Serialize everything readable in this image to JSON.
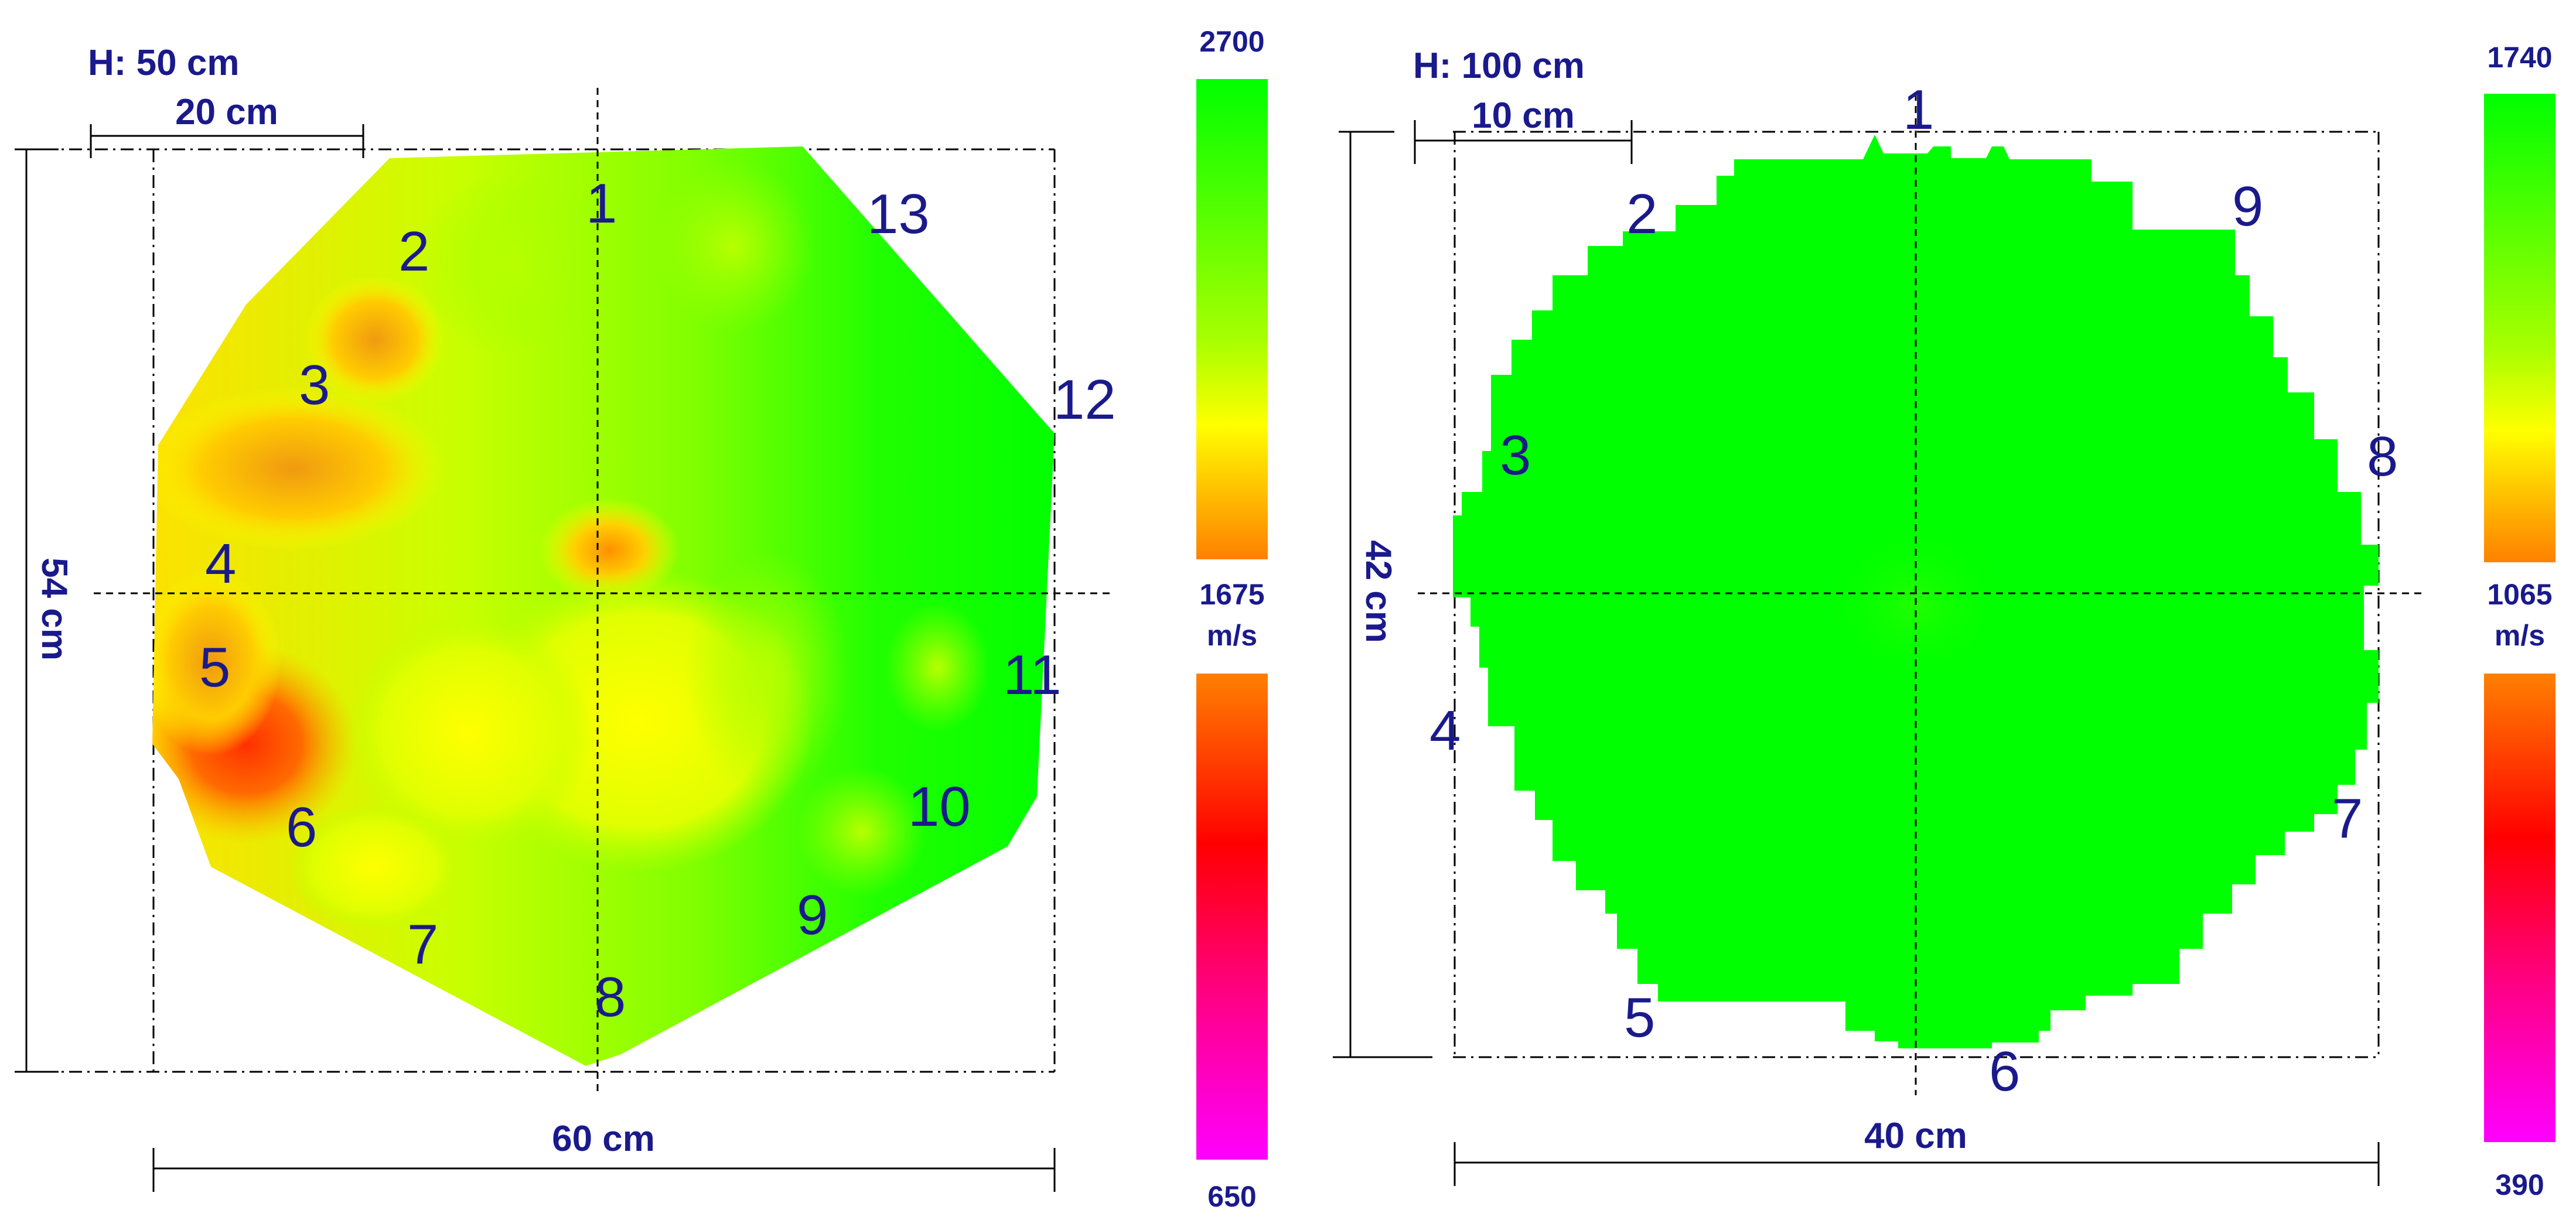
{
  "panels": [
    {
      "height_label": "H: 50 cm",
      "scale_bar_label": "20 cm",
      "width_label": "60 cm",
      "depth_label": "54 cm",
      "sensors": [
        "1",
        "2",
        "3",
        "4",
        "5",
        "6",
        "7",
        "8",
        "9",
        "10",
        "11",
        "12",
        "13"
      ],
      "colorbar": {
        "top_value": "2700",
        "mid_value": "1675",
        "mid_unit": "m/s",
        "bottom_value": "650"
      }
    },
    {
      "height_label": "H: 100 cm",
      "scale_bar_label": "10 cm",
      "width_label": "40 cm",
      "depth_label": "42 cm",
      "sensors": [
        "1",
        "2",
        "3",
        "4",
        "5",
        "6",
        "7",
        "8",
        "9"
      ],
      "colorbar": {
        "top_value": "1740",
        "mid_value": "1065",
        "mid_unit": "m/s",
        "bottom_value": "390"
      }
    }
  ],
  "colors": {
    "green": "#00ff00",
    "yellow": "#ffff00",
    "orange": "#ff8000",
    "red": "#ff0000",
    "magenta": "#ff00ff",
    "text": "#1a1a8c"
  }
}
